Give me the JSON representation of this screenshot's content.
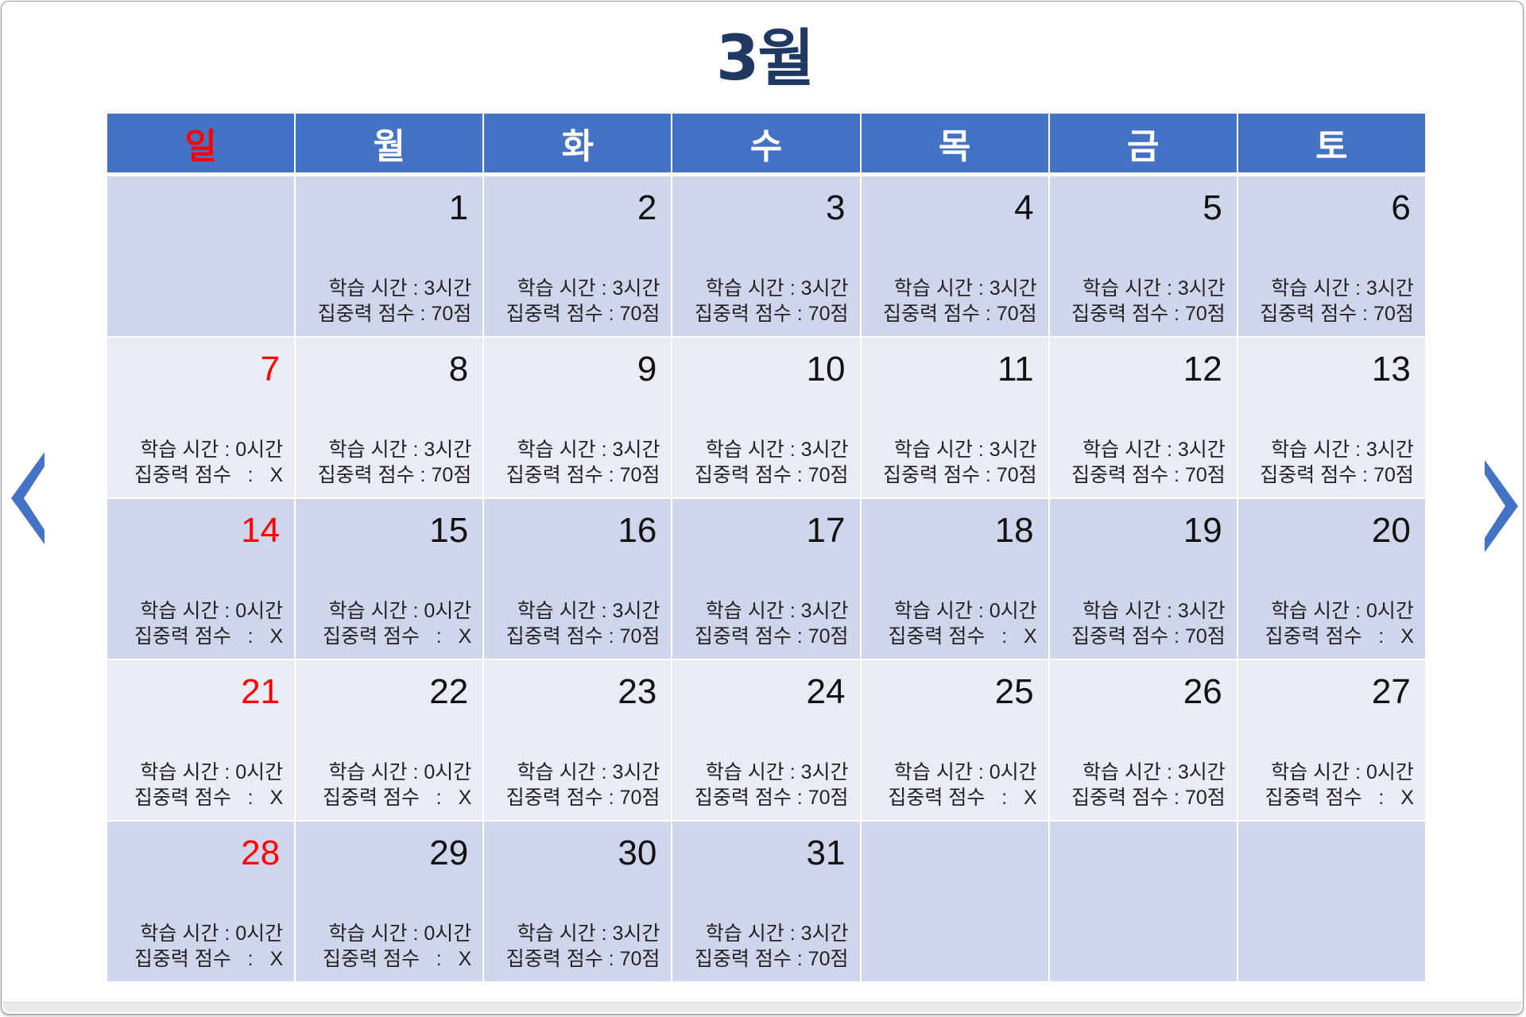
{
  "title": "3월",
  "weekdays": [
    {
      "label": "일",
      "sunday": true
    },
    {
      "label": "월"
    },
    {
      "label": "화"
    },
    {
      "label": "수"
    },
    {
      "label": "목"
    },
    {
      "label": "금"
    },
    {
      "label": "토"
    }
  ],
  "colors": {
    "header_bg": "#4472c4",
    "header_text": "#ffffff",
    "sunday": "#ff0000",
    "title": "#1f3864",
    "row_dark": "#cfd5ea",
    "row_light": "#e9ebf5",
    "arrow": "#4472c4"
  },
  "icons": {
    "prev": "chevron-left-icon",
    "next": "chevron-right-icon"
  },
  "weeks": [
    [
      {},
      {
        "date": "1",
        "study": "학습 시간 : 3시간",
        "focus": "집중력 점수 : 70점"
      },
      {
        "date": "2",
        "study": "학습 시간 : 3시간",
        "focus": "집중력 점수 : 70점"
      },
      {
        "date": "3",
        "study": "학습 시간 : 3시간",
        "focus": "집중력 점수 : 70점"
      },
      {
        "date": "4",
        "study": "학습 시간 : 3시간",
        "focus": "집중력 점수 : 70점"
      },
      {
        "date": "5",
        "study": "학습 시간 : 3시간",
        "focus": "집중력 점수 : 70점"
      },
      {
        "date": "6",
        "study": "학습 시간 : 3시간",
        "focus": "집중력 점수 : 70점"
      }
    ],
    [
      {
        "date": "7",
        "sunday": true,
        "study": "학습 시간 : 0시간",
        "focus": "집중력 점수   :   X"
      },
      {
        "date": "8",
        "study": "학습 시간 : 3시간",
        "focus": "집중력 점수 : 70점"
      },
      {
        "date": "9",
        "study": "학습 시간 : 3시간",
        "focus": "집중력 점수 : 70점"
      },
      {
        "date": "10",
        "study": "학습 시간 : 3시간",
        "focus": "집중력 점수 : 70점"
      },
      {
        "date": "11",
        "study": "학습 시간 : 3시간",
        "focus": "집중력 점수 : 70점"
      },
      {
        "date": "12",
        "study": "학습 시간 : 3시간",
        "focus": "집중력 점수 : 70점"
      },
      {
        "date": "13",
        "study": "학습 시간 : 3시간",
        "focus": "집중력 점수 : 70점"
      }
    ],
    [
      {
        "date": "14",
        "sunday": true,
        "study": "학습 시간 : 0시간",
        "focus": "집중력 점수   :   X"
      },
      {
        "date": "15",
        "study": "학습 시간 : 0시간",
        "focus": "집중력 점수   :   X"
      },
      {
        "date": "16",
        "study": "학습 시간 : 3시간",
        "focus": "집중력 점수 : 70점"
      },
      {
        "date": "17",
        "study": "학습 시간 : 3시간",
        "focus": "집중력 점수 : 70점"
      },
      {
        "date": "18",
        "study": "학습 시간 : 0시간",
        "focus": "집중력 점수   :   X"
      },
      {
        "date": "19",
        "study": "학습 시간 : 3시간",
        "focus": "집중력 점수 : 70점"
      },
      {
        "date": "20",
        "study": "학습 시간 : 0시간",
        "focus": "집중력 점수   :   X"
      }
    ],
    [
      {
        "date": "21",
        "sunday": true,
        "study": "학습 시간 : 0시간",
        "focus": "집중력 점수   :   X"
      },
      {
        "date": "22",
        "study": "학습 시간 : 0시간",
        "focus": "집중력 점수   :   X"
      },
      {
        "date": "23",
        "study": "학습 시간 : 3시간",
        "focus": "집중력 점수 : 70점"
      },
      {
        "date": "24",
        "study": "학습 시간 : 3시간",
        "focus": "집중력 점수 : 70점"
      },
      {
        "date": "25",
        "study": "학습 시간 : 0시간",
        "focus": "집중력 점수   :   X"
      },
      {
        "date": "26",
        "study": "학습 시간 : 3시간",
        "focus": "집중력 점수 : 70점"
      },
      {
        "date": "27",
        "study": "학습 시간 : 0시간",
        "focus": "집중력 점수   :   X"
      }
    ],
    [
      {
        "date": "28",
        "sunday": true,
        "study": "학습 시간 : 0시간",
        "focus": "집중력 점수   :   X"
      },
      {
        "date": "29",
        "study": "학습 시간 : 0시간",
        "focus": "집중력 점수   :   X"
      },
      {
        "date": "30",
        "study": "학습 시간 : 3시간",
        "focus": "집중력 점수 : 70점"
      },
      {
        "date": "31",
        "study": "학습 시간 : 3시간",
        "focus": "집중력 점수 : 70점"
      },
      {},
      {},
      {}
    ]
  ]
}
